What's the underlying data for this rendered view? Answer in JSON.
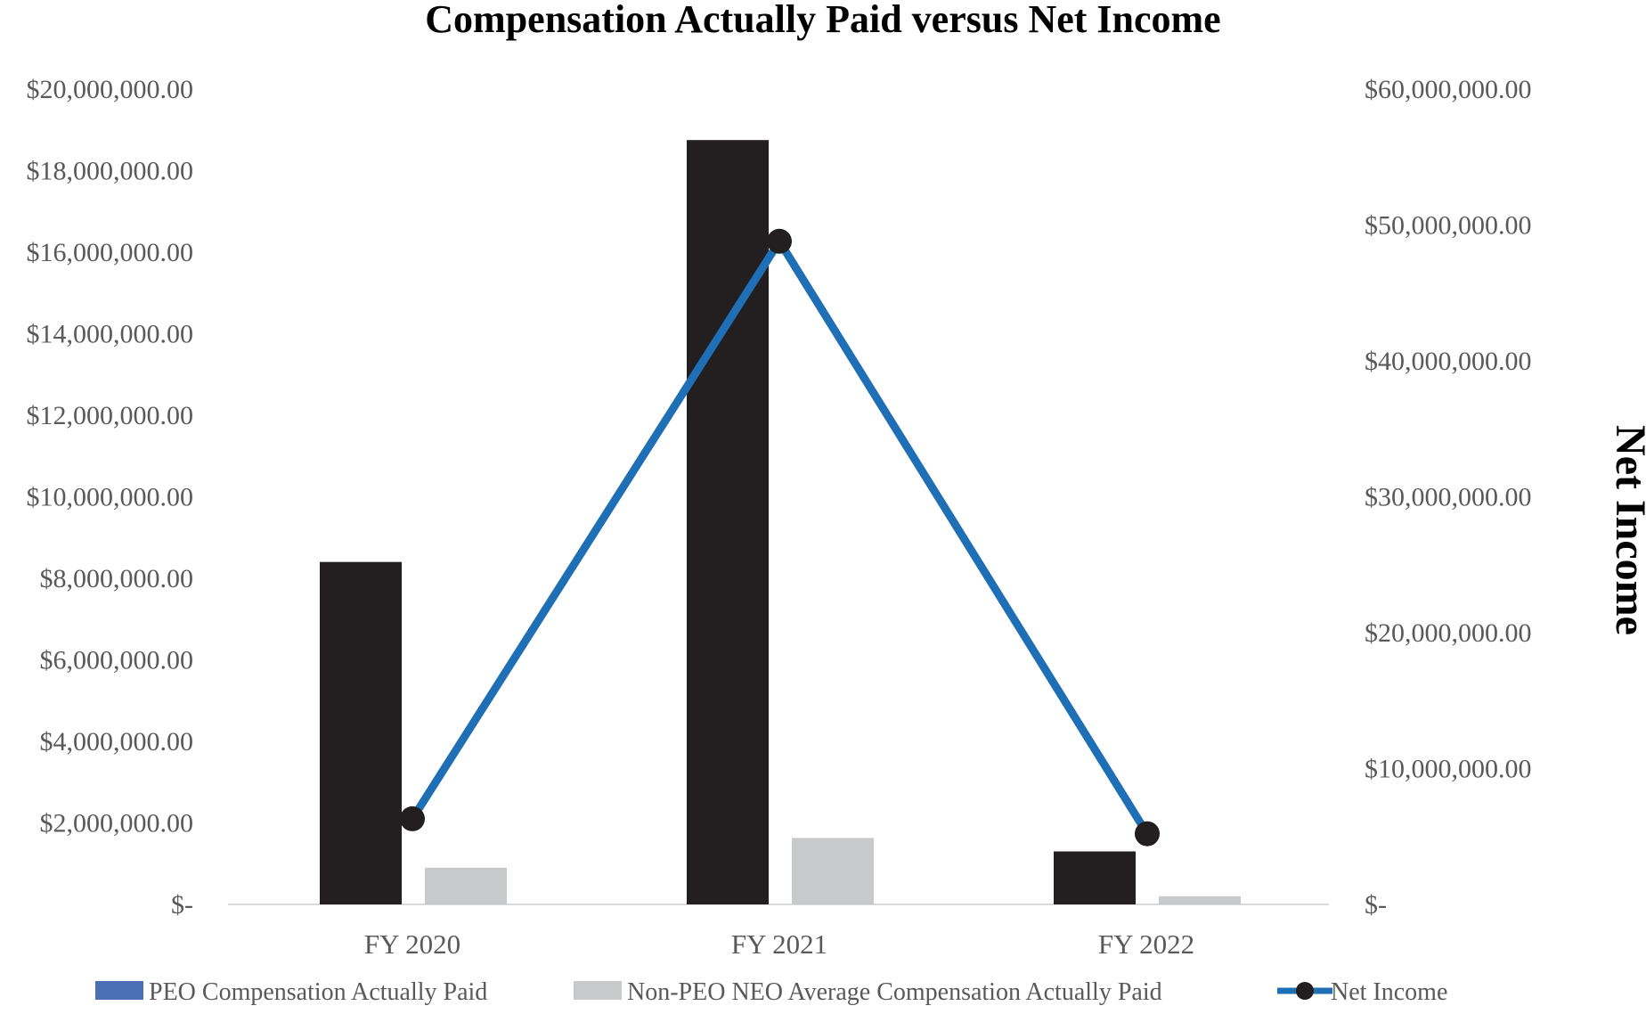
{
  "chart_data": {
    "type": "bar",
    "title": "Compensation Actually Paid versus Net Income",
    "categories": [
      "FY 2020",
      "FY 2021",
      "FY 2022"
    ],
    "series": [
      {
        "name": "PEO Compensation Actually Paid",
        "type": "bar",
        "axis": "left",
        "color": "#231f20",
        "values": [
          8400000,
          18750000,
          1300000
        ]
      },
      {
        "name": "Non-PEO NEO Average Compensation Actually Paid",
        "type": "bar",
        "axis": "left",
        "color": "#c8c9cb",
        "values": [
          900000,
          1630000,
          200000
        ]
      },
      {
        "name": "Net Income",
        "type": "line",
        "axis": "right",
        "color": "#1f6fb7",
        "marker_color": "#231f20",
        "values": [
          6300000,
          48800000,
          5200000
        ]
      }
    ],
    "y_left": {
      "ylim": [
        0,
        20000000
      ],
      "tick_labels": [
        "$-",
        "$2,000,000.00",
        "$4,000,000.00",
        "$6,000,000.00",
        "$8,000,000.00",
        "$10,000,000.00",
        "$12,000,000.00",
        "$14,000,000.00",
        "$16,000,000.00",
        "$18,000,000.00",
        "$20,000,000.00"
      ]
    },
    "y_right": {
      "label": "Net Income",
      "ylim": [
        0,
        60000000
      ],
      "tick_labels": [
        "$-",
        "$10,000,000.00",
        "$20,000,000.00",
        "$30,000,000.00",
        "$40,000,000.00",
        "$50,000,000.00",
        "$60,000,000.00"
      ]
    },
    "legend": {
      "placement": "bottom",
      "items": [
        {
          "label": "PEO Compensation Actually Paid",
          "color": "#4a6fb5",
          "style": "box"
        },
        {
          "label": "Non-PEO NEO Average Compensation Actually Paid",
          "color": "#c8c9cb",
          "style": "box"
        },
        {
          "label": "Net Income",
          "color": "#1f6fb7",
          "style": "line-marker"
        }
      ]
    },
    "grid": false
  }
}
